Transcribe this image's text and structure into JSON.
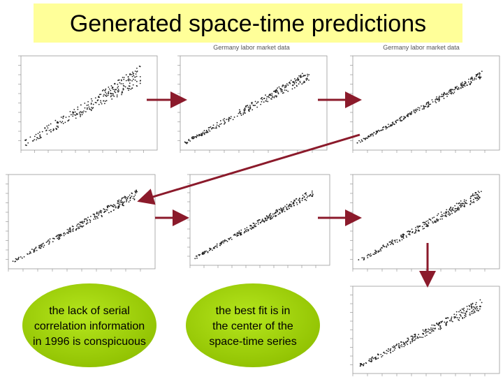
{
  "header": {
    "title": "Generated space-time predictions"
  },
  "plot_captions": [
    "Germany labor market data",
    "Germany labor market data"
  ],
  "callouts": [
    {
      "lines": [
        "the lack of serial",
        "correlation information",
        "in 1996 is conspicuous"
      ]
    },
    {
      "lines": [
        "the best fit is in",
        "the center of the",
        "space-time series"
      ]
    }
  ]
}
